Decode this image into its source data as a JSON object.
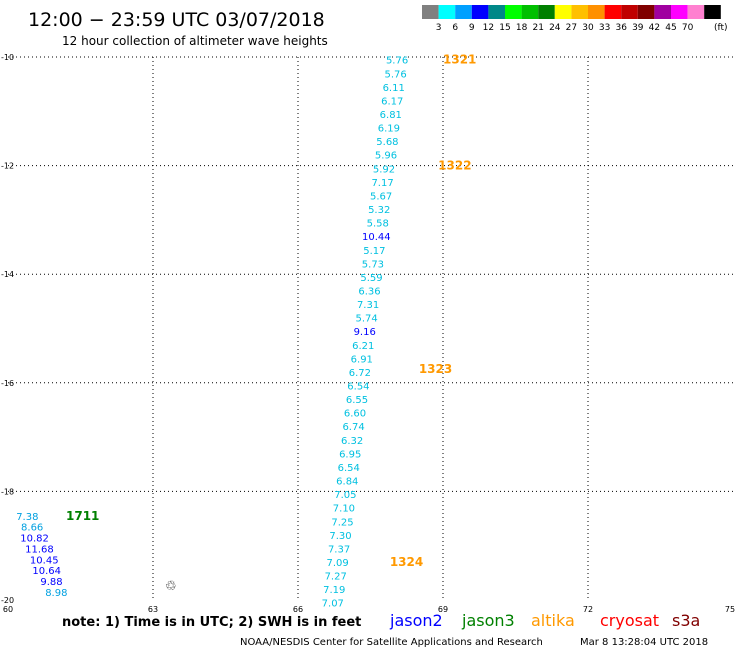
{
  "title": "12:00 − 23:59 UTC 03/07/2018",
  "subtitle": "12 hour collection of altimeter wave heights",
  "colorbar": {
    "unit": "(ft)",
    "colors": [
      "#808080",
      "#00ffff",
      "#00a0ff",
      "#0000ff",
      "#008888",
      "#00ff00",
      "#00c000",
      "#008000",
      "#ffff00",
      "#ffc000",
      "#ff9000",
      "#ff0000",
      "#c00000",
      "#800000",
      "#a000a0",
      "#ff00ff",
      "#ff80d0",
      "#000000"
    ],
    "labels": [
      "3",
      "6",
      "9",
      "12",
      "15",
      "18",
      "21",
      "24",
      "27",
      "30",
      "33",
      "36",
      "39",
      "42",
      "45",
      "70"
    ]
  },
  "axes": {
    "lon_ticks": [
      "60",
      "63",
      "66",
      "69",
      "72",
      "75"
    ],
    "lat_ticks": [
      "-10",
      "-12",
      "-14",
      "-16",
      "-18",
      "-20"
    ]
  },
  "tracks": [
    {
      "satellite": "altika",
      "color": "#00c0e0",
      "points": [
        {
          "lon": 68.05,
          "lat": -10.05,
          "swh": "5.76"
        },
        {
          "lon": 68.02,
          "lat": -10.3,
          "swh": "5.76"
        },
        {
          "lon": 67.98,
          "lat": -10.55,
          "swh": "6.11"
        },
        {
          "lon": 67.95,
          "lat": -10.8,
          "swh": "6.17"
        },
        {
          "lon": 67.92,
          "lat": -11.05,
          "swh": "6.81"
        },
        {
          "lon": 67.88,
          "lat": -11.3,
          "swh": "6.19"
        },
        {
          "lon": 67.85,
          "lat": -11.55,
          "swh": "5.68"
        },
        {
          "lon": 67.82,
          "lat": -11.8,
          "swh": "5.96"
        },
        {
          "lon": 67.78,
          "lat": -12.05,
          "swh": "5.92"
        },
        {
          "lon": 67.75,
          "lat": -12.3,
          "swh": "7.17"
        },
        {
          "lon": 67.72,
          "lat": -12.55,
          "swh": "5.67"
        },
        {
          "lon": 67.68,
          "lat": -12.8,
          "swh": "5.32"
        },
        {
          "lon": 67.65,
          "lat": -13.05,
          "swh": "5.58"
        },
        {
          "lon": 67.62,
          "lat": -13.3,
          "swh": "10.44"
        },
        {
          "lon": 67.58,
          "lat": -13.55,
          "swh": "5.17"
        },
        {
          "lon": 67.55,
          "lat": -13.8,
          "swh": "5.73"
        },
        {
          "lon": 67.52,
          "lat": -14.05,
          "swh": "5.59"
        },
        {
          "lon": 67.48,
          "lat": -14.3,
          "swh": "6.36"
        },
        {
          "lon": 67.45,
          "lat": -14.55,
          "swh": "7.31"
        },
        {
          "lon": 67.42,
          "lat": -14.8,
          "swh": "5.74"
        },
        {
          "lon": 67.38,
          "lat": -15.05,
          "swh": "9.16"
        },
        {
          "lon": 67.35,
          "lat": -15.3,
          "swh": "6.21"
        },
        {
          "lon": 67.32,
          "lat": -15.55,
          "swh": "6.91"
        },
        {
          "lon": 67.28,
          "lat": -15.8,
          "swh": "6.72"
        },
        {
          "lon": 67.25,
          "lat": -16.05,
          "swh": "6.54"
        },
        {
          "lon": 67.22,
          "lat": -16.3,
          "swh": "6.55"
        },
        {
          "lon": 67.18,
          "lat": -16.55,
          "swh": "6.60"
        },
        {
          "lon": 67.15,
          "lat": -16.8,
          "swh": "6.74"
        },
        {
          "lon": 67.12,
          "lat": -17.05,
          "swh": "6.32"
        },
        {
          "lon": 67.08,
          "lat": -17.3,
          "swh": "6.95"
        },
        {
          "lon": 67.05,
          "lat": -17.55,
          "swh": "6.54"
        },
        {
          "lon": 67.02,
          "lat": -17.8,
          "swh": "6.84"
        },
        {
          "lon": 66.98,
          "lat": -18.05,
          "swh": "7.05"
        },
        {
          "lon": 66.95,
          "lat": -18.3,
          "swh": "7.10"
        },
        {
          "lon": 66.92,
          "lat": -18.55,
          "swh": "7.25"
        },
        {
          "lon": 66.88,
          "lat": -18.8,
          "swh": "7.30"
        },
        {
          "lon": 66.85,
          "lat": -19.05,
          "swh": "7.37"
        },
        {
          "lon": 66.82,
          "lat": -19.3,
          "swh": "7.09"
        },
        {
          "lon": 66.78,
          "lat": -19.55,
          "swh": "7.27"
        },
        {
          "lon": 66.75,
          "lat": -19.8,
          "swh": "7.19"
        },
        {
          "lon": 66.72,
          "lat": -20.05,
          "swh": "7.07"
        }
      ],
      "time_labels": [
        {
          "lon": 69.0,
          "lat": -10.05,
          "text": "1321"
        },
        {
          "lon": 68.9,
          "lat": -12.0,
          "text": "1322"
        },
        {
          "lon": 68.5,
          "lat": -15.75,
          "text": "1323"
        },
        {
          "lon": 67.9,
          "lat": -19.3,
          "text": "1324"
        }
      ]
    },
    {
      "satellite": "jason3",
      "color": "#00a0e0",
      "points": [
        {
          "lon": 60.4,
          "lat": -18.45,
          "swh": "7.38"
        },
        {
          "lon": 60.5,
          "lat": -18.65,
          "swh": "8.66"
        },
        {
          "lon": 60.55,
          "lat": -18.85,
          "swh": "10.82"
        },
        {
          "lon": 60.65,
          "lat": -19.05,
          "swh": "11.68"
        },
        {
          "lon": 60.75,
          "lat": -19.25,
          "swh": "10.45"
        },
        {
          "lon": 60.8,
          "lat": -19.45,
          "swh": "10.64"
        },
        {
          "lon": 60.9,
          "lat": -19.65,
          "swh": "9.88"
        },
        {
          "lon": 61.0,
          "lat": -19.85,
          "swh": "8.98"
        }
      ],
      "time_labels": [
        {
          "lon": 61.2,
          "lat": -18.45,
          "text": "1711"
        }
      ]
    }
  ],
  "legend": {
    "note": "note:  1) Time is in UTC;  2) SWH is in feet",
    "satellites": [
      {
        "name": "jason2",
        "color": "#0000ff"
      },
      {
        "name": "jason3",
        "color": "#008000"
      },
      {
        "name": "altika",
        "color": "#ff9900"
      },
      {
        "name": "cryosat",
        "color": "#ff0000"
      },
      {
        "name": "s3a",
        "color": "#800000"
      }
    ]
  },
  "footer": {
    "credit": "NOAA/NESDIS Center for Satellite Applications and Research",
    "timestamp": "Mar  8 13:28:04 UTC 2018"
  },
  "island_label": "♲"
}
